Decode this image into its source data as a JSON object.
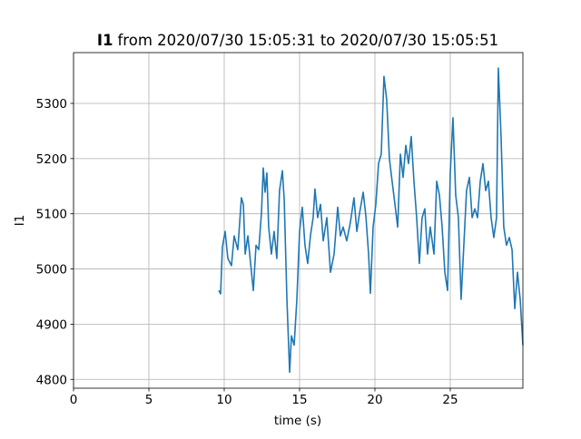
{
  "chart_data": {
    "type": "line",
    "title": {
      "variable": "I1",
      "text": "from 2020/07/30 15:05:31 to 2020/07/30 15:05:51"
    },
    "x_label": "time (s)",
    "y_label": "I1",
    "xlim": [
      0,
      29.82
    ],
    "xticks": [
      0,
      5,
      10,
      15,
      20,
      25
    ],
    "ylim": [
      4784,
      5392
    ],
    "yticks": [
      4800,
      4900,
      5000,
      5100,
      5200,
      5300
    ],
    "grid": true,
    "series": [
      {
        "color": "#1f77b4",
        "x": [
          9.64,
          9.76,
          9.88,
          10.06,
          10.24,
          10.48,
          10.66,
          10.9,
          11.14,
          11.27,
          11.39,
          11.57,
          11.75,
          11.93,
          12.11,
          12.29,
          12.47,
          12.59,
          12.71,
          12.83,
          12.95,
          13.13,
          13.31,
          13.49,
          13.67,
          13.86,
          13.98,
          14.16,
          14.34,
          14.46,
          14.64,
          14.82,
          15.0,
          15.18,
          15.36,
          15.54,
          15.72,
          15.9,
          16.02,
          16.2,
          16.39,
          16.57,
          16.81,
          17.05,
          17.29,
          17.53,
          17.71,
          17.89,
          18.13,
          18.37,
          18.61,
          18.8,
          18.98,
          19.22,
          19.4,
          19.58,
          19.7,
          19.88,
          20.06,
          20.24,
          20.42,
          20.6,
          20.78,
          20.96,
          21.14,
          21.33,
          21.51,
          21.69,
          21.87,
          22.05,
          22.23,
          22.41,
          22.59,
          22.77,
          22.95,
          23.13,
          23.31,
          23.49,
          23.67,
          23.92,
          24.1,
          24.28,
          24.46,
          24.64,
          24.82,
          25.0,
          25.18,
          25.36,
          25.54,
          25.72,
          25.9,
          26.08,
          26.27,
          26.45,
          26.63,
          26.81,
          26.99,
          27.17,
          27.35,
          27.53,
          27.71,
          27.89,
          28.07,
          28.19,
          28.37,
          28.55,
          28.73,
          28.92,
          29.1,
          29.28,
          29.46,
          29.64,
          29.82
        ],
        "values": [
          4961,
          4955,
          5040,
          5068,
          5019,
          5006,
          5060,
          5035,
          5129,
          5117,
          5027,
          5060,
          5010,
          4961,
          5043,
          5035,
          5101,
          5183,
          5139,
          5174,
          5076,
          5027,
          5068,
          5019,
          5142,
          5178,
          5126,
          4945,
          4813,
          4879,
          4862,
          4945,
          5068,
          5112,
          5043,
          5010,
          5060,
          5093,
          5145,
          5093,
          5117,
          5051,
          5093,
          4994,
          5027,
          5112,
          5060,
          5076,
          5051,
          5084,
          5129,
          5068,
          5101,
          5139,
          5096,
          5027,
          4956,
          5076,
          5117,
          5191,
          5208,
          5349,
          5307,
          5200,
          5159,
          5117,
          5076,
          5208,
          5166,
          5224,
          5191,
          5240,
          5159,
          5093,
          5010,
          5093,
          5109,
          5027,
          5076,
          5027,
          5159,
          5134,
          5076,
          4994,
          4961,
          5174,
          5274,
          5134,
          5093,
          4945,
          5043,
          5142,
          5166,
          5093,
          5109,
          5093,
          5159,
          5191,
          5142,
          5159,
          5093,
          5057,
          5093,
          5364,
          5240,
          5076,
          5043,
          5057,
          5035,
          4928,
          4994,
          4945,
          4862
        ]
      }
    ]
  }
}
